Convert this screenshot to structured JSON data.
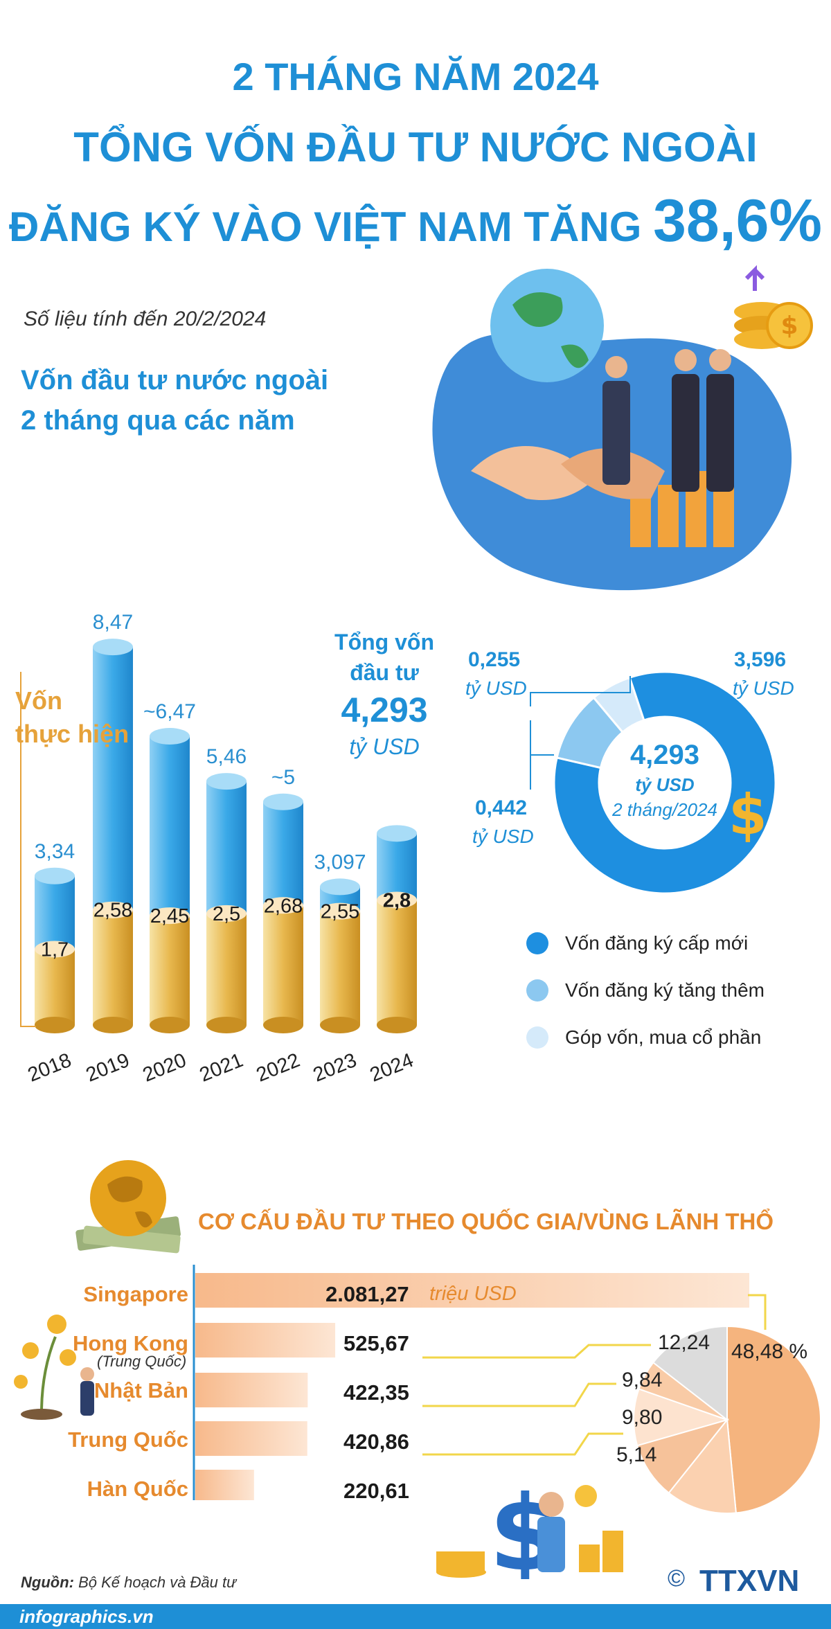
{
  "header": {
    "line1": "2 THÁNG NĂM 2024",
    "line2": "TỔNG VỐN ĐẦU TƯ NƯỚC NGOÀI",
    "line3": "ĐĂNG KÝ VÀO VIỆT NAM TĂNG",
    "highlight": "38,6%"
  },
  "as_of": "Số liệu tính đến 20/2/2024",
  "chart1_title": [
    "Vốn đầu tư nước ngoài",
    "2 tháng qua các năm"
  ],
  "realized_label": [
    "Vốn",
    "thực hiện"
  ],
  "total_label": [
    "Tổng vốn",
    "đầu tư"
  ],
  "total_value": "4,293",
  "total_unit": "tỷ USD",
  "chart_data": [
    {
      "type": "bar",
      "categories": [
        "2018",
        "2019",
        "2020",
        "2021",
        "2022",
        "2023",
        "2024"
      ],
      "series": [
        {
          "name": "Tổng vốn đầu tư",
          "values": [
            3.34,
            8.47,
            6.47,
            5.46,
            5,
            3.097,
            4.293
          ],
          "labels": [
            "3,34",
            "8,47",
            "~6,47",
            "5,46",
            "~5",
            "3,097",
            ""
          ]
        },
        {
          "name": "Vốn thực hiện",
          "values": [
            1.7,
            2.58,
            2.45,
            2.5,
            2.68,
            2.55,
            2.8
          ],
          "labels": [
            "1,7",
            "2,58",
            "2,45",
            "2,5",
            "2,68",
            "2,55",
            "2,8"
          ]
        }
      ],
      "colors": {
        "total": "#3aa9e8",
        "realized": "#e8b84e"
      }
    },
    {
      "type": "pie",
      "center_value": "4,293",
      "center_unit": "tỷ USD",
      "center_note": "2 tháng/2024",
      "slices": [
        {
          "name": "Vốn đăng ký cấp mới",
          "value": 3.596,
          "label": "3,596",
          "unit": "tỷ USD",
          "color": "#1e8fe0"
        },
        {
          "name": "Vốn đăng ký tăng thêm",
          "value": 0.442,
          "label": "0,442",
          "unit": "tỷ USD",
          "color": "#8cc8f0"
        },
        {
          "name": "Góp vốn, mua cổ phần",
          "value": 0.255,
          "label": "0,255",
          "unit": "tỷ USD",
          "color": "#d5eafa"
        }
      ]
    },
    {
      "type": "bar",
      "title": "CƠ CẤU ĐẦU TƯ THEO QUỐC GIA/VÙNG LÃNH THỔ",
      "categories": [
        "Singapore",
        "Hong Kong",
        "Nhật Bản",
        "Trung Quốc",
        "Hàn Quốc"
      ],
      "category_notes": [
        "",
        "(Trung Quốc)",
        "",
        "",
        ""
      ],
      "values": [
        2081.27,
        525.67,
        422.35,
        420.86,
        220.61
      ],
      "labels": [
        "2.081,27",
        "525,67",
        "422,35",
        "420,86",
        "220,61"
      ],
      "unit": "triệu USD"
    },
    {
      "type": "pie",
      "slices": [
        {
          "value": 48.48,
          "label": "48,48 %"
        },
        {
          "value": 12.24,
          "label": "12,24"
        },
        {
          "value": 9.84,
          "label": "9,84"
        },
        {
          "value": 9.8,
          "label": "9,80"
        },
        {
          "value": 5.14,
          "label": "5,14"
        },
        {
          "value": 14.5,
          "label": ""
        }
      ]
    }
  ],
  "source_label": "Nguồn:",
  "source_text": "Bộ Kế hoạch và Đầu tư",
  "footer": "infographics.vn",
  "brand": "TTXVN",
  "copyright": "©"
}
